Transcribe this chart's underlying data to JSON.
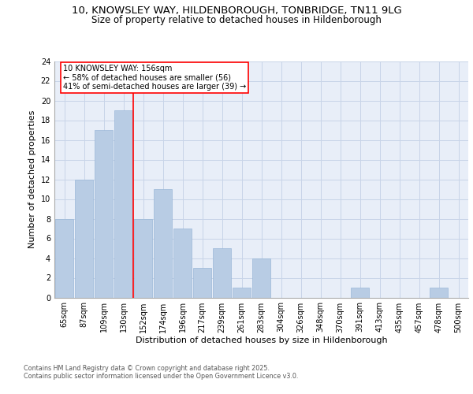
{
  "title_line1": "10, KNOWSLEY WAY, HILDENBOROUGH, TONBRIDGE, TN11 9LG",
  "title_line2": "Size of property relative to detached houses in Hildenborough",
  "xlabel": "Distribution of detached houses by size in Hildenborough",
  "ylabel": "Number of detached properties",
  "categories": [
    "65sqm",
    "87sqm",
    "109sqm",
    "130sqm",
    "152sqm",
    "174sqm",
    "196sqm",
    "217sqm",
    "239sqm",
    "261sqm",
    "283sqm",
    "304sqm",
    "326sqm",
    "348sqm",
    "370sqm",
    "391sqm",
    "413sqm",
    "435sqm",
    "457sqm",
    "478sqm",
    "500sqm"
  ],
  "values": [
    8,
    12,
    17,
    19,
    8,
    11,
    7,
    3,
    5,
    1,
    4,
    0,
    0,
    0,
    0,
    1,
    0,
    0,
    0,
    1,
    0
  ],
  "bar_color": "#b8cce4",
  "bar_edgecolor": "#9ab8d8",
  "property_line_x": 3.5,
  "annotation_text": "10 KNOWSLEY WAY: 156sqm\n← 58% of detached houses are smaller (56)\n41% of semi-detached houses are larger (39) →",
  "annotation_box_facecolor": "white",
  "annotation_box_edgecolor": "red",
  "vline_color": "red",
  "ylim": [
    0,
    24
  ],
  "yticks": [
    0,
    2,
    4,
    6,
    8,
    10,
    12,
    14,
    16,
    18,
    20,
    22,
    24
  ],
  "grid_color": "#c8d4e8",
  "background_color": "#e8eef8",
  "footer_line1": "Contains HM Land Registry data © Crown copyright and database right 2025.",
  "footer_line2": "Contains public sector information licensed under the Open Government Licence v3.0.",
  "title_fontsize": 9.5,
  "subtitle_fontsize": 8.5,
  "tick_fontsize": 7,
  "label_fontsize": 8,
  "annotation_fontsize": 7,
  "footer_fontsize": 5.8
}
